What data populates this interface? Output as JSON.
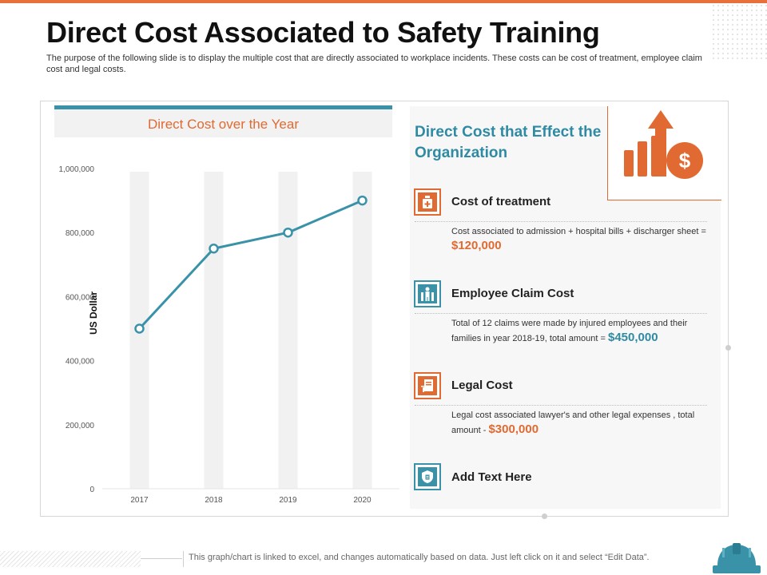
{
  "page": {
    "title": "Direct Cost Associated to Safety Training",
    "subtitle": "The purpose of the following slide is to display the multiple cost that are directly associated to workplace incidents. These costs can be cost of treatment, employee claim cost and legal costs.",
    "footer_note": "This graph/chart is linked to excel, and changes automatically based on data. Just left click on it and select “Edit Data”."
  },
  "colors": {
    "accent_orange": "#e06a32",
    "accent_teal": "#3a92a8",
    "line": "#3a92a8",
    "band": "#f1f1f1"
  },
  "chart_data": {
    "type": "line",
    "title": "Direct Cost over the Year",
    "xlabel": "",
    "ylabel": "US Dollar",
    "categories": [
      "2017",
      "2018",
      "2019",
      "2020"
    ],
    "series": [
      {
        "name": "Direct Cost",
        "values": [
          500000,
          750000,
          800000,
          900000
        ]
      }
    ],
    "ylim": [
      0,
      1000000
    ],
    "yticks": [
      0,
      200000,
      400000,
      600000,
      800000,
      1000000
    ],
    "ytick_labels": [
      "0",
      "200,000",
      "400,000",
      "600,000",
      "800,000",
      "1,000,000"
    ],
    "grid": false
  },
  "panel": {
    "title": "Direct Cost that Effect the Organization",
    "header_icon": "growth-chart-dollar-icon",
    "items": [
      {
        "title": "Cost of treatment",
        "icon": "medicine-icon",
        "desc": "Cost associated to admission + hospital bills + discharger sheet = ",
        "amount": "$120,000"
      },
      {
        "title": "Employee Claim Cost",
        "icon": "injured-worker-icon",
        "desc": "Total of 12 claims were made by injured employees and their families in year 2018-19, total amount = ",
        "amount": "$450,000"
      },
      {
        "title": "Legal Cost",
        "icon": "legal-document-icon",
        "desc": "Legal cost associated lawyer's and other legal expenses , total amount - ",
        "amount": "$300,000"
      },
      {
        "title": "Add Text Here",
        "icon": "shield-document-icon"
      }
    ]
  }
}
